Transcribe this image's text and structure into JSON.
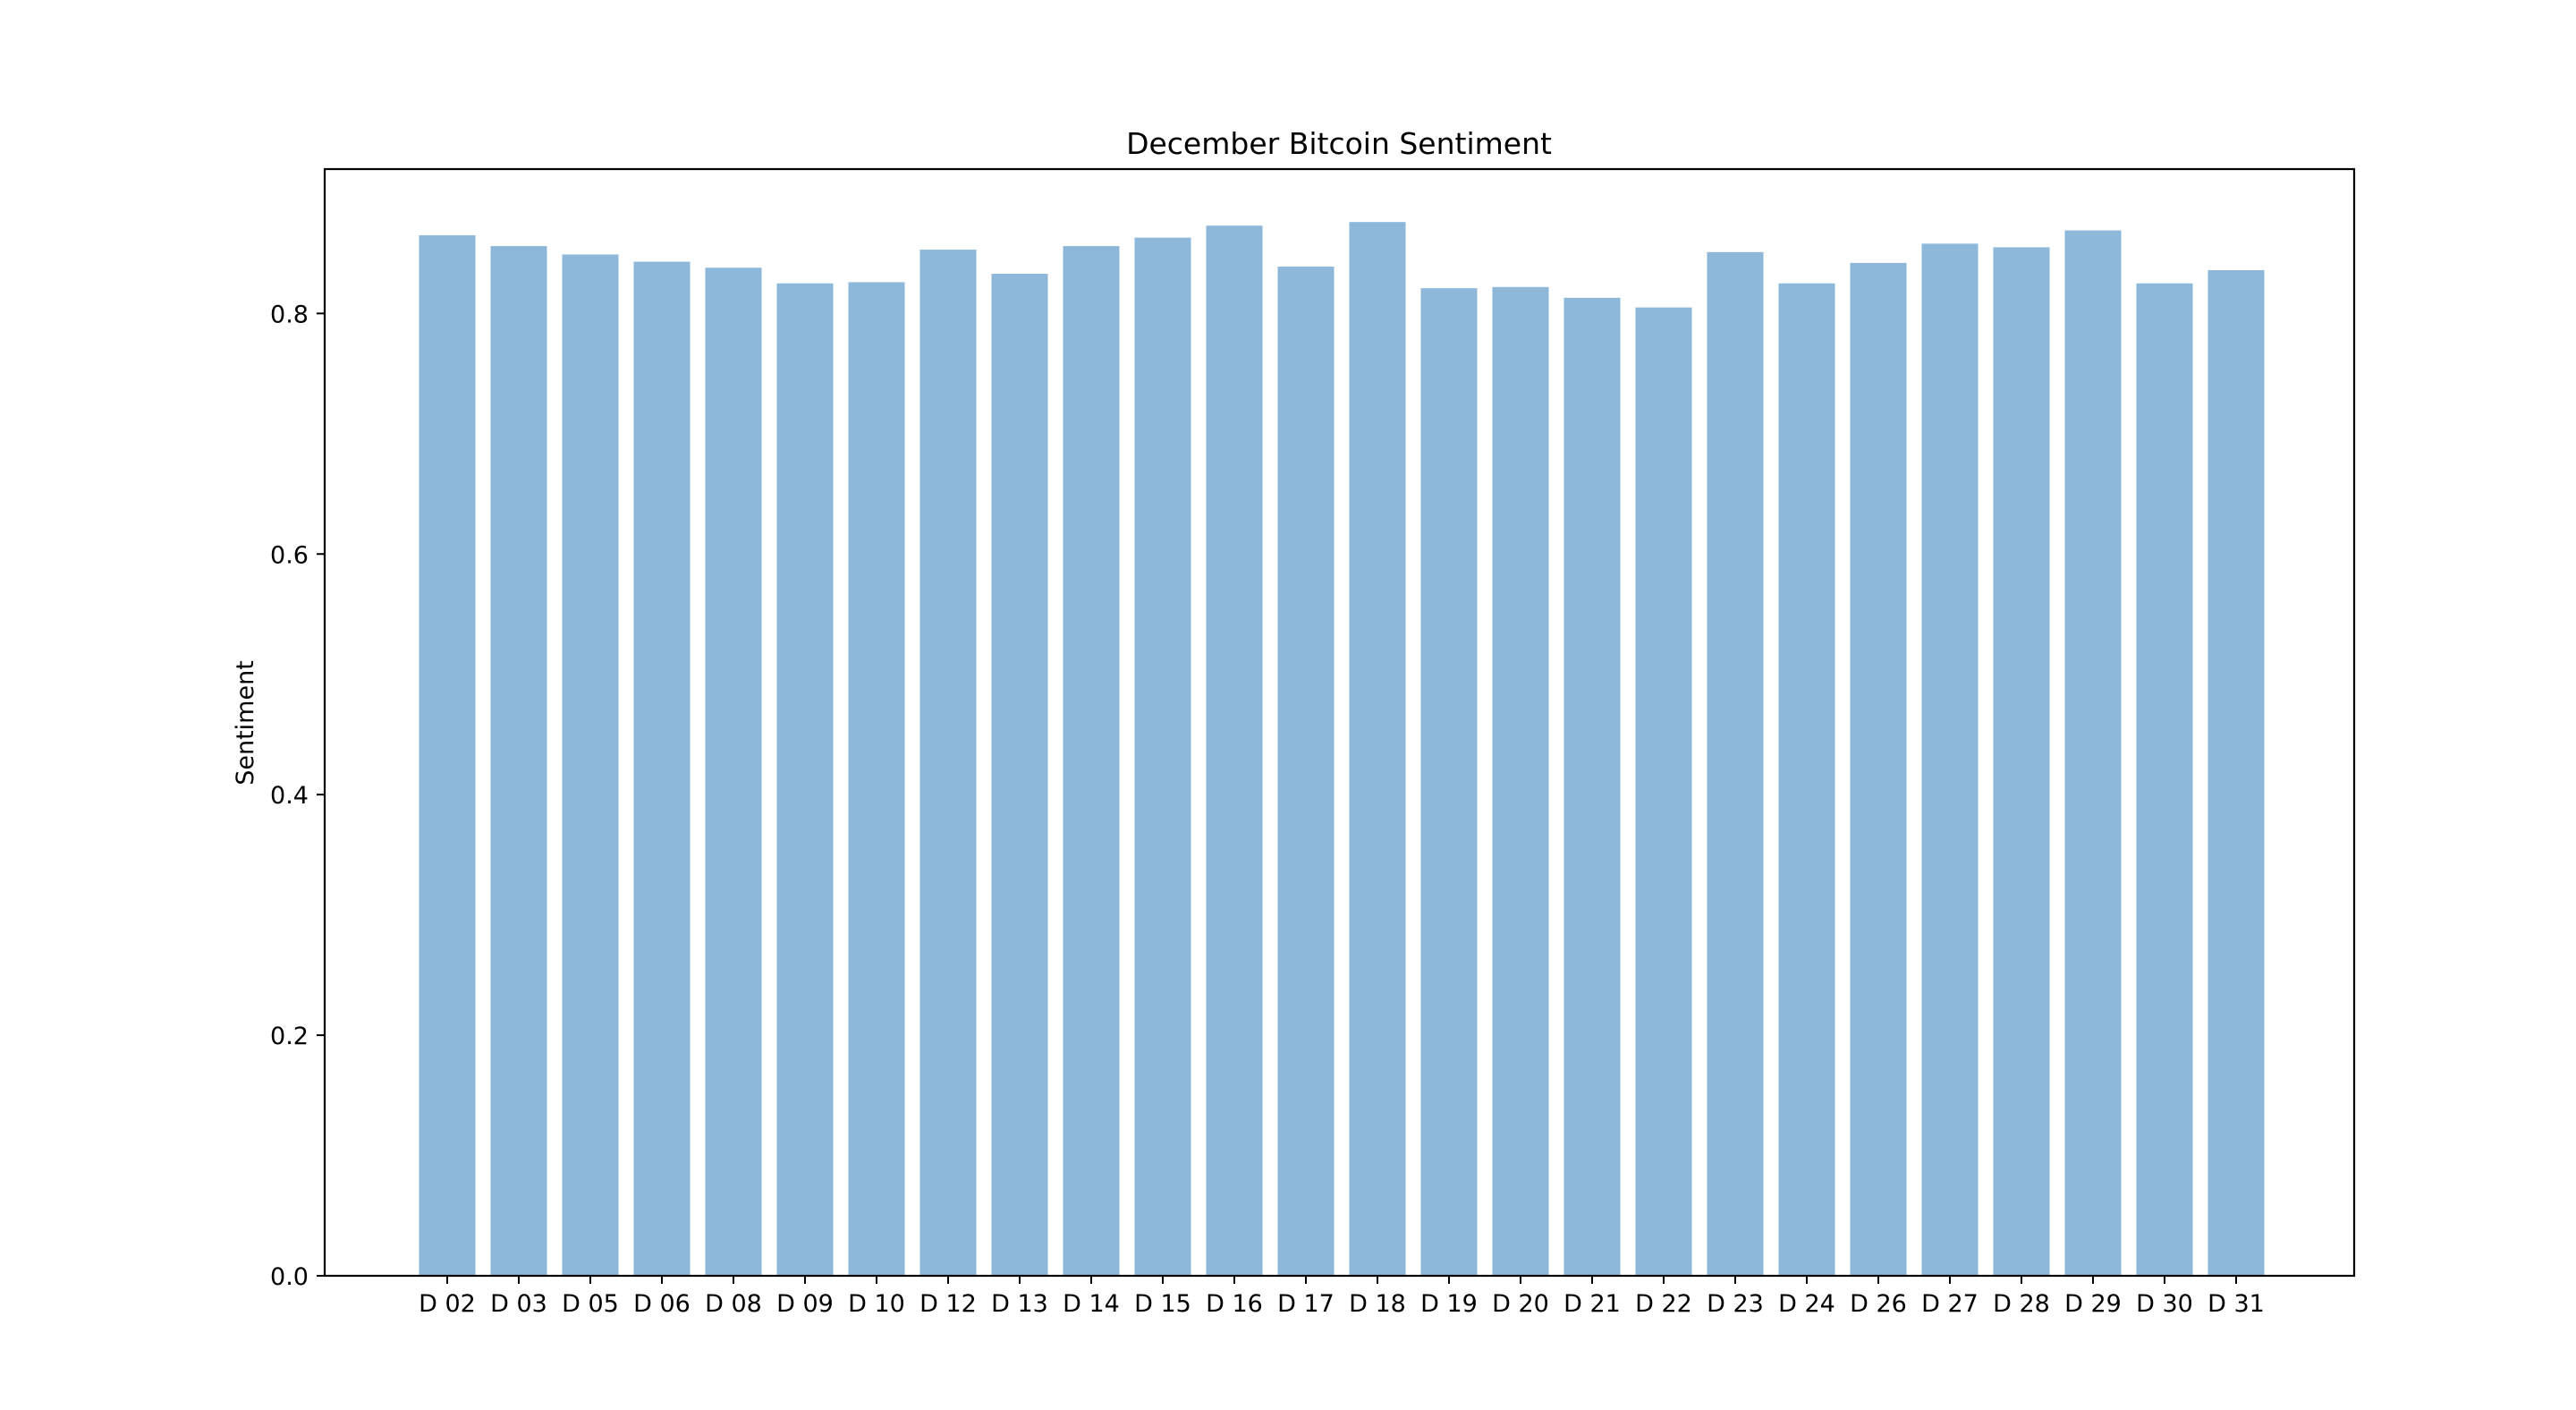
{
  "chart_data": {
    "type": "bar",
    "title": "December Bitcoin Sentiment",
    "xlabel": "",
    "ylabel": "Sentiment",
    "ylim": [
      0,
      0.92
    ],
    "yticks": [
      0.0,
      0.2,
      0.4,
      0.6,
      0.8
    ],
    "ytick_labels": [
      "0.0",
      "0.2",
      "0.4",
      "0.6",
      "0.8"
    ],
    "grid": false,
    "legend": "none",
    "bar_color": "#8db8da",
    "categories": [
      "D 02",
      "D 03",
      "D 05",
      "D 06",
      "D 08",
      "D 09",
      "D 10",
      "D 12",
      "D 13",
      "D 14",
      "D 15",
      "D 16",
      "D 17",
      "D 18",
      "D 19",
      "D 20",
      "D 21",
      "D 22",
      "D 23",
      "D 24",
      "D 26",
      "D 27",
      "D 28",
      "D 29",
      "D 30",
      "D 31"
    ],
    "values": [
      0.865,
      0.856,
      0.849,
      0.843,
      0.838,
      0.825,
      0.826,
      0.853,
      0.833,
      0.856,
      0.863,
      0.873,
      0.839,
      0.876,
      0.821,
      0.822,
      0.813,
      0.805,
      0.851,
      0.825,
      0.842,
      0.858,
      0.855,
      0.869,
      0.825,
      0.836
    ]
  }
}
